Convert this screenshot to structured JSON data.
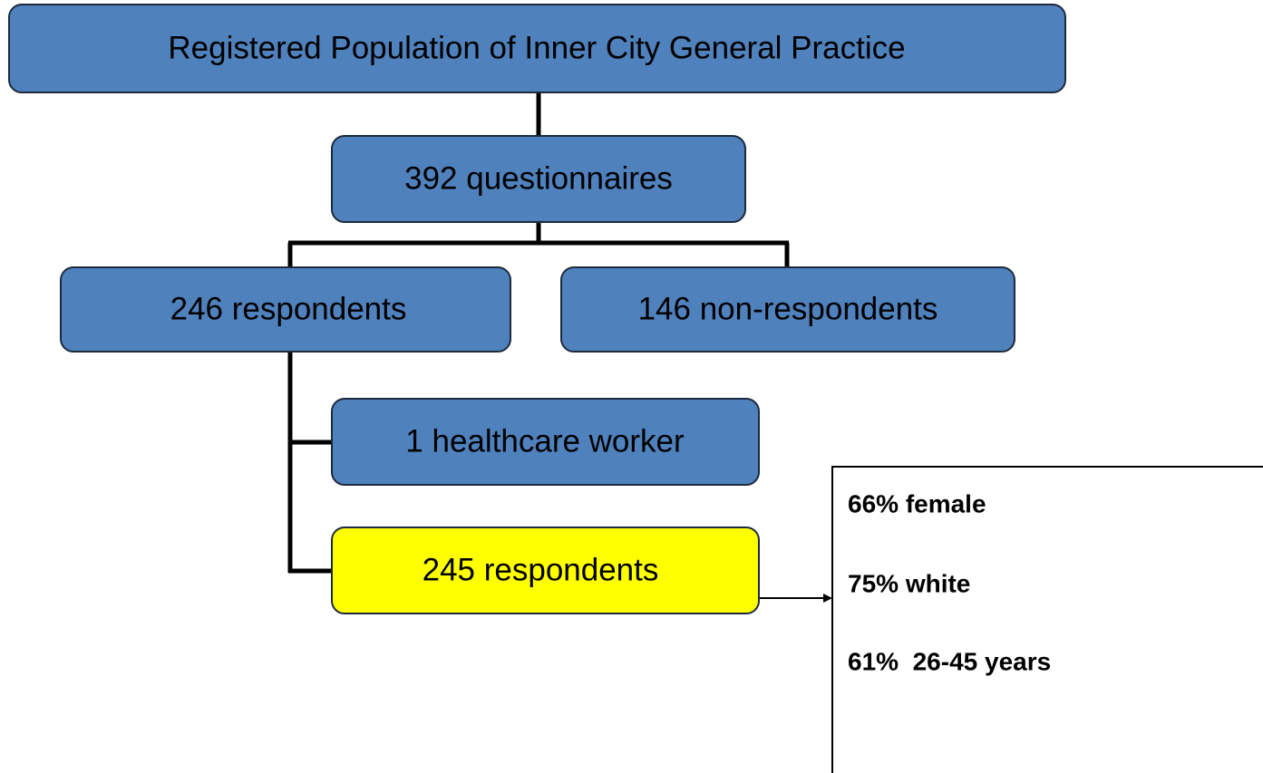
{
  "nodes": [
    {
      "label": "Registered Population of Inner City General Practice"
    },
    {
      "label": "392 questionnaires"
    },
    {
      "label": "246 respondents"
    },
    {
      "label": "146 non-respondents"
    },
    {
      "label": "1 healthcare worker"
    },
    {
      "label": "245 respondents"
    }
  ],
  "info_box": {
    "lines": [
      "66% female",
      "75% white",
      "61%  26-45 years"
    ]
  }
}
